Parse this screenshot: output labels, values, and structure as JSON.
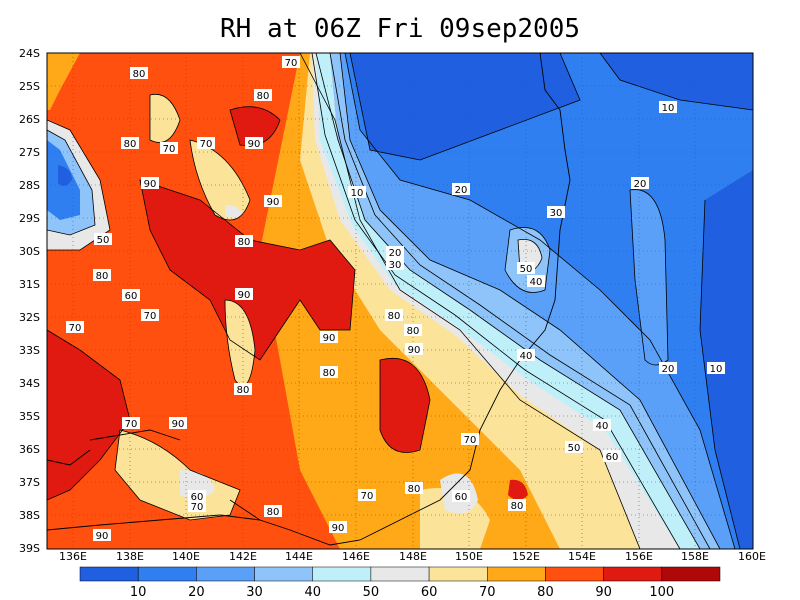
{
  "title": "RH at 06Z Fri 09sep2005",
  "lat_labels": [
    "24S",
    "25S",
    "26S",
    "27S",
    "28S",
    "29S",
    "30S",
    "31S",
    "32S",
    "33S",
    "34S",
    "35S",
    "36S",
    "37S",
    "38S",
    "39S"
  ],
  "lon_labels": [
    "136E",
    "138E",
    "140E",
    "142E",
    "144E",
    "146E",
    "148E",
    "150E",
    "152E",
    "154E",
    "156E",
    "158E",
    "160E"
  ],
  "colorbar": {
    "levels": [
      "10",
      "20",
      "30",
      "40",
      "50",
      "60",
      "70",
      "80",
      "90",
      "100"
    ],
    "colors": [
      "#1f5fe0",
      "#2f7ff0",
      "#5aa0f8",
      "#8fc4fa",
      "#bff0fa",
      "#e8e8e8",
      "#fce39a",
      "#ffa818",
      "#ff5010",
      "#e01a10",
      "#b00808"
    ]
  },
  "contour_labels": [
    {
      "text": "80"
    },
    {
      "text": "70"
    },
    {
      "text": "80"
    },
    {
      "text": "10"
    },
    {
      "text": "90"
    },
    {
      "text": "80"
    },
    {
      "text": "70"
    },
    {
      "text": "70"
    },
    {
      "text": "90"
    },
    {
      "text": "90"
    },
    {
      "text": "10"
    },
    {
      "text": "20"
    },
    {
      "text": "20"
    },
    {
      "text": "30"
    },
    {
      "text": "50"
    },
    {
      "text": "80"
    },
    {
      "text": "50"
    },
    {
      "text": "40"
    },
    {
      "text": "20"
    },
    {
      "text": "30"
    },
    {
      "text": "80"
    },
    {
      "text": "90"
    },
    {
      "text": "60"
    },
    {
      "text": "70"
    },
    {
      "text": "70"
    },
    {
      "text": "90"
    },
    {
      "text": "80"
    },
    {
      "text": "90"
    },
    {
      "text": "80"
    },
    {
      "text": "40"
    },
    {
      "text": "80"
    },
    {
      "text": "20"
    },
    {
      "text": "10"
    },
    {
      "text": "80"
    },
    {
      "text": "90"
    },
    {
      "text": "70"
    },
    {
      "text": "40"
    },
    {
      "text": "50"
    },
    {
      "text": "60"
    },
    {
      "text": "70"
    },
    {
      "text": "60"
    },
    {
      "text": "70"
    },
    {
      "text": "60"
    },
    {
      "text": "80"
    },
    {
      "text": "80"
    },
    {
      "text": "80"
    },
    {
      "text": "90"
    },
    {
      "text": "90"
    },
    {
      "text": "70"
    }
  ]
}
